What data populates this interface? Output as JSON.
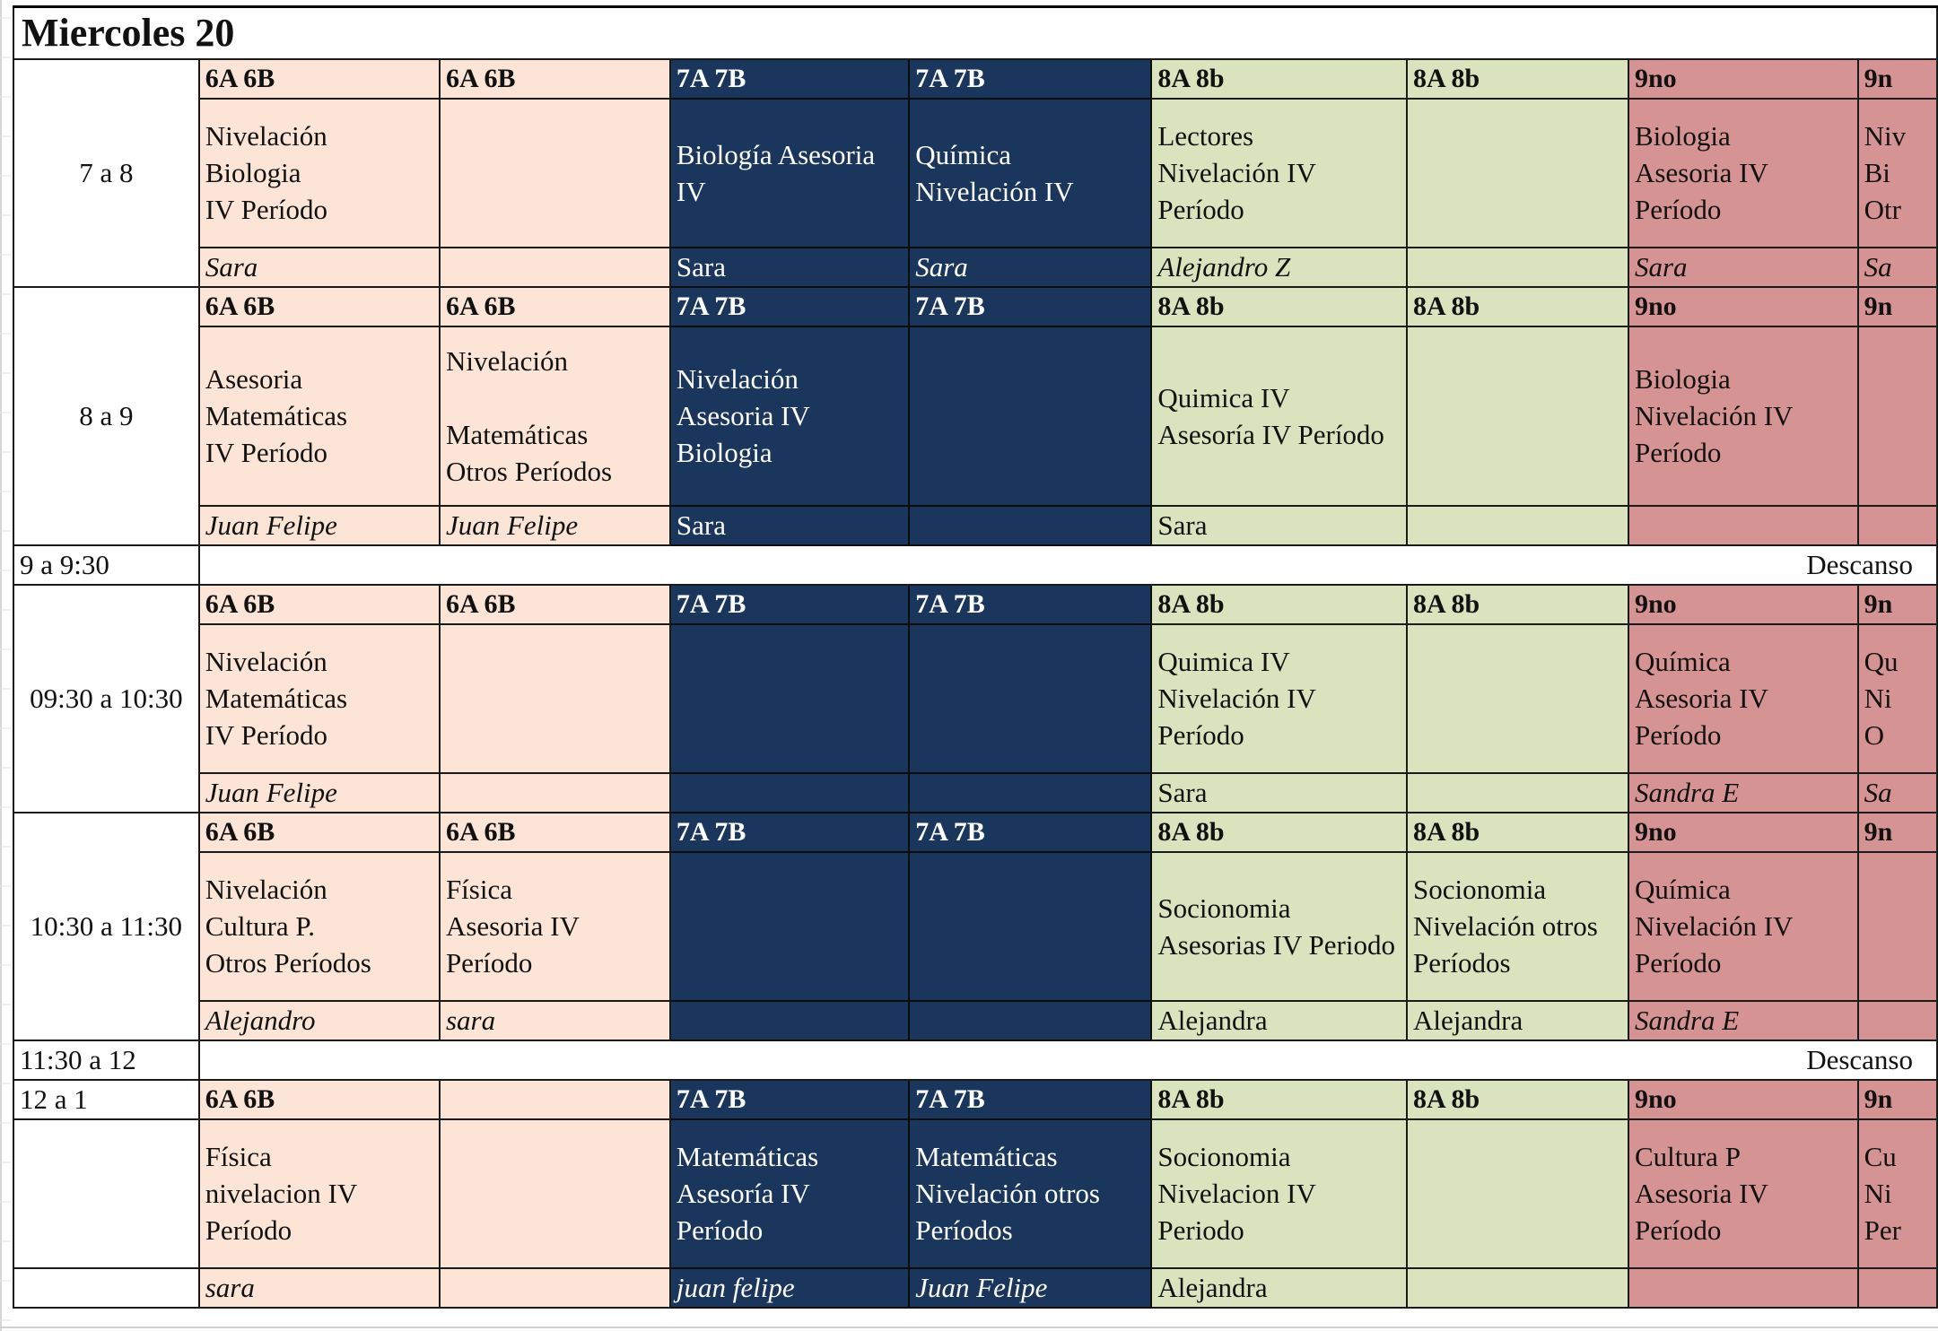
{
  "day_title": "Miercoles 20",
  "colors": {
    "g6": "#fce5d6",
    "g7": "#1b365d",
    "g8": "#d9e3be",
    "g9": "#d69393"
  },
  "blocks": [
    {
      "time": "7 a 8",
      "headers": [
        "6A 6B",
        "6A 6B",
        "7A 7B",
        "7A 7B",
        "8A 8b",
        "8A 8b",
        "9no",
        "9n"
      ],
      "subjects": [
        "Nivelación\n         Biologia\n IV   Período",
        "",
        "Biología   Asesoria\n IV",
        "Química\nNivelación  IV",
        " Lectores\nNivelación     IV\nPeríodo",
        "",
        "Biologia\nAsesoria IV\nPeríodo",
        "Niv\n Bi\nOtr"
      ],
      "teachers": [
        "Sara",
        "",
        "Sara",
        "Sara",
        "Alejandro Z",
        "",
        "Sara",
        "Sa"
      ]
    },
    {
      "time": "8 a 9",
      "headers": [
        "6A 6B",
        "6A 6B",
        "7A 7B",
        "7A 7B",
        "8A 8b",
        "8A 8b",
        "9no",
        "9n"
      ],
      "subjects": [
        "Asesoria\n       Matemáticas\nIV Período",
        "Nivelación\n\n Matemáticas\n      Otros Períodos",
        " Nivelación\nAsesoria   IV\nBiologia",
        "",
        "Quimica IV\nAsesoría IV Período",
        "",
        "Biologia\nNivelación IV\nPeríodo",
        ""
      ],
      "teachers": [
        "Juan Felipe",
        "Juan Felipe",
        "Sara",
        "",
        "Sara",
        "",
        "",
        ""
      ]
    },
    {
      "time": "09:30 a 10:30",
      "headers": [
        "6A 6B",
        "6A 6B",
        "7A 7B",
        "7A 7B",
        "8A 8b",
        "8A 8b",
        "9no",
        "9n"
      ],
      "subjects": [
        "Nivelación\n         Matemáticas\n IV Período",
        "",
        "",
        "",
        "Quimica IV\nNivelación IV\nPeríodo",
        "",
        "Química\nAsesoria IV\nPeríodo",
        "Qu\nNi\n O"
      ],
      "teachers": [
        "Juan Felipe",
        "",
        "",
        "",
        "Sara",
        "",
        "Sandra E",
        "Sa"
      ]
    },
    {
      "time": "10:30 a 11:30",
      "headers": [
        "6A 6B",
        "6A 6B",
        "7A 7B",
        "7A 7B",
        "8A 8b",
        "8A 8b",
        "9no",
        "9n"
      ],
      "subjects": [
        "Nivelación\n         Cultura P.\n    Otros Períodos",
        "Física\nAsesoria IV\nPeríodo",
        "",
        "",
        "Socionomia\nAsesorias IV Periodo",
        "Socionomia\nNivelación otros\nPeríodos",
        "Química\nNivelación IV\nPeríodo",
        ""
      ],
      "teachers": [
        "Alejandro",
        "sara",
        "",
        "",
        "Alejandra",
        "Alejandra",
        "Sandra E",
        ""
      ]
    },
    {
      "time": "12 a 1",
      "headers": [
        "6A 6B",
        "",
        "7A 7B",
        "7A 7B",
        "8A 8b",
        "8A 8b",
        "9no",
        "9n"
      ],
      "subjects": [
        "Física\nnivelacion IV\nPeríodo",
        "",
        "Matemáticas\nAsesoría    IV\nPeríodo",
        " Matemáticas\n Nivelación  otros\nPeríodos",
        "Socionomia\nNivelacion  IV\nPeriodo",
        "",
        "Cultura P\nAsesoria IV\nPeríodo",
        "Cu\nNi\nPer"
      ],
      "teachers": [
        "sara",
        "",
        "juan felipe",
        "Juan Felipe",
        "Alejandra",
        "",
        "",
        ""
      ]
    }
  ],
  "breaks": [
    {
      "time": "9 a 9:30",
      "label": "Descanso"
    },
    {
      "time": "11:30 a 12",
      "label": "Descanso"
    }
  ]
}
